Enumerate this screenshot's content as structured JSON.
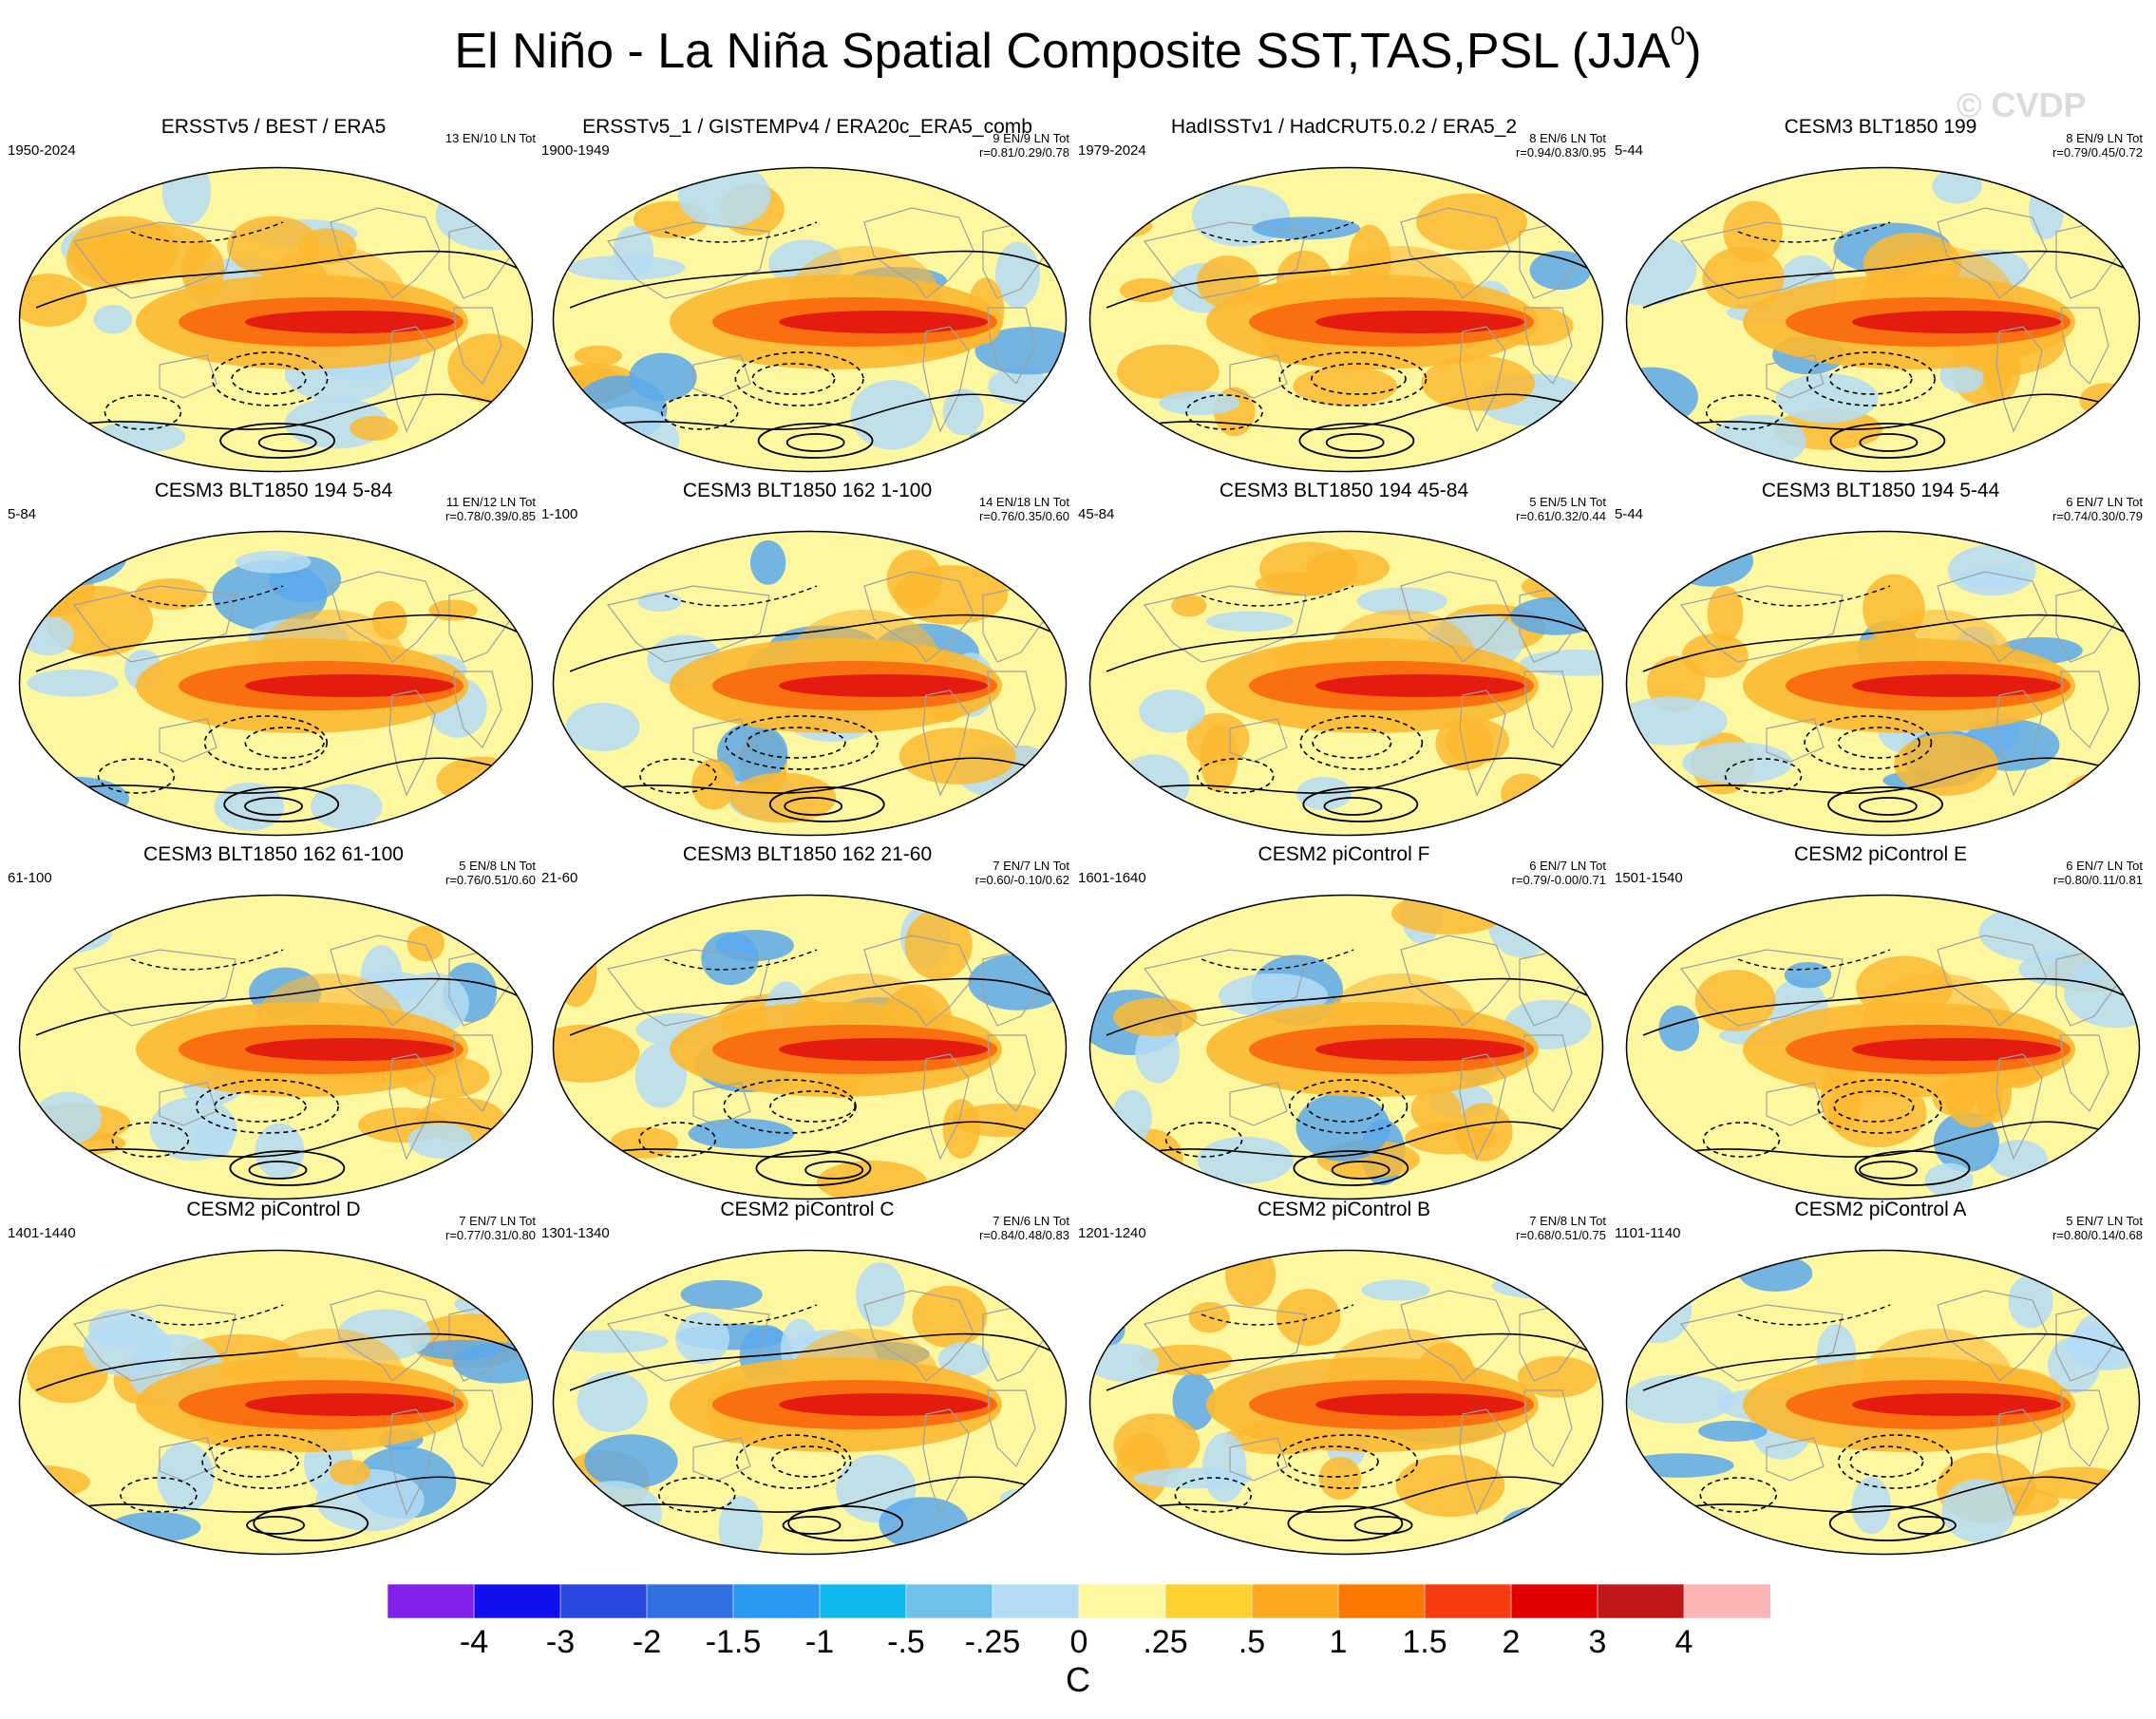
{
  "title": "El Niño - La Niña Spatial Composite SST,TAS,PSL (JJA",
  "title_sup": "0",
  "title_close": ")",
  "watermark": "© CVDP",
  "panels": [
    {
      "title": "ERSSTv5 / BEST / ERA5",
      "period": "1950-2024",
      "counts": "13 EN/10 LN Tot",
      "corr": ""
    },
    {
      "title": "ERSSTv5_1 / GISTEMPv4 / ERA20c_ERA5_comb",
      "period": "1900-1949",
      "counts": "9 EN/9 LN Tot",
      "corr": "r=0.81/0.29/0.78"
    },
    {
      "title": "HadISSTv1 / HadCRUT5.0.2 / ERA5_2",
      "period": "1979-2024",
      "counts": "8 EN/6 LN Tot",
      "corr": "r=0.94/0.83/0.95"
    },
    {
      "title": "CESM3 BLT1850 199",
      "period": "5-44",
      "counts": "8 EN/9 LN Tot",
      "corr": "r=0.79/0.45/0.72"
    },
    {
      "title": "CESM3 BLT1850 194 5-84",
      "period": "5-84",
      "counts": "11 EN/12 LN Tot",
      "corr": "r=0.78/0.39/0.85"
    },
    {
      "title": "CESM3 BLT1850 162 1-100",
      "period": "1-100",
      "counts": "14 EN/18 LN Tot",
      "corr": "r=0.76/0.35/0.60"
    },
    {
      "title": "CESM3 BLT1850 194 45-84",
      "period": "45-84",
      "counts": "5 EN/5 LN Tot",
      "corr": "r=0.61/0.32/0.44"
    },
    {
      "title": "CESM3 BLT1850 194 5-44",
      "period": "5-44",
      "counts": "6 EN/7 LN Tot",
      "corr": "r=0.74/0.30/0.79"
    },
    {
      "title": "CESM3 BLT1850 162 61-100",
      "period": "61-100",
      "counts": "5 EN/8 LN Tot",
      "corr": "r=0.76/0.51/0.60"
    },
    {
      "title": "CESM3 BLT1850 162 21-60",
      "period": "21-60",
      "counts": "7 EN/7 LN Tot",
      "corr": "r=0.60/-0.10/0.62"
    },
    {
      "title": "CESM2 piControl F",
      "period": "1601-1640",
      "counts": "6 EN/7 LN Tot",
      "corr": "r=0.79/-0.00/0.71"
    },
    {
      "title": "CESM2 piControl E",
      "period": "1501-1540",
      "counts": "6 EN/7 LN Tot",
      "corr": "r=0.80/0.11/0.81"
    },
    {
      "title": "CESM2 piControl D",
      "period": "1401-1440",
      "counts": "7 EN/7 LN Tot",
      "corr": "r=0.77/0.31/0.80"
    },
    {
      "title": "CESM2 piControl C",
      "period": "1301-1340",
      "counts": "7 EN/6 LN Tot",
      "corr": "r=0.84/0.48/0.83"
    },
    {
      "title": "CESM2 piControl B",
      "period": "1201-1240",
      "counts": "7 EN/8 LN Tot",
      "corr": "r=0.68/0.51/0.75"
    },
    {
      "title": "CESM2 piControl A",
      "period": "1101-1140",
      "counts": "5 EN/7 LN Tot",
      "corr": "r=0.80/0.14/0.68"
    }
  ],
  "colorbar": {
    "colors": [
      "#8020e8",
      "#1010ee",
      "#2848e0",
      "#3070e0",
      "#2898f0",
      "#10b8f0",
      "#70c0ec",
      "#b4dcf4",
      "#fdf8a0",
      "#fcd030",
      "#fca820",
      "#fc7800",
      "#f83c10",
      "#e00000",
      "#c01818",
      "#fcb4b4"
    ],
    "ticks": [
      "-4",
      "-3",
      "-2",
      "-1.5",
      "-1",
      "-.5",
      "-.25",
      "0",
      ".25",
      ".5",
      "1",
      "1.5",
      "2",
      "3",
      "4"
    ],
    "units": "C"
  },
  "colors": {
    "ocean_neutral": "#fdf8a0",
    "cool": "#b4dcf4",
    "cold": "#5aa8ec",
    "warm": "#fcb830",
    "hot": "#fa7010",
    "hottest": "#e41c10",
    "contour": "#000000",
    "coast": "#a0a0a0"
  }
}
